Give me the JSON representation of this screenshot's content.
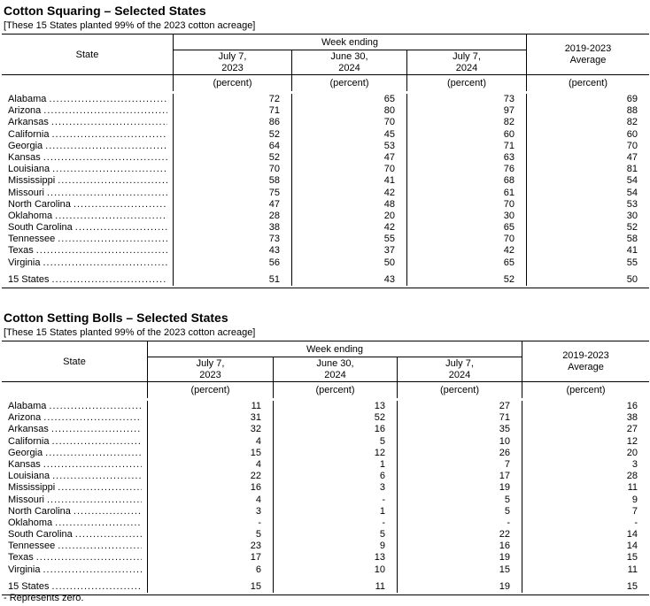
{
  "colors": {
    "text": "#000000",
    "border": "#000000",
    "background": "#ffffff"
  },
  "footnote": "- Represents zero.",
  "tables": [
    {
      "title": "Cotton Squaring – Selected States",
      "note": "[These 15 States planted 99% of the 2023 cotton acreage]",
      "state_header": "State",
      "week_ending_header": "Week ending",
      "columns": [
        {
          "line1": "July 7,",
          "line2": "2023"
        },
        {
          "line1": "June 30,",
          "line2": "2024"
        },
        {
          "line1": "July 7,",
          "line2": "2024"
        }
      ],
      "average_header": {
        "line1": "2019-2023",
        "line2": "Average"
      },
      "unit_label": "(percent)",
      "rows": [
        {
          "state": "Alabama",
          "values": [
            "72",
            "65",
            "73",
            "69"
          ]
        },
        {
          "state": "Arizona",
          "values": [
            "71",
            "80",
            "97",
            "88"
          ]
        },
        {
          "state": "Arkansas",
          "values": [
            "86",
            "70",
            "82",
            "82"
          ]
        },
        {
          "state": "California",
          "values": [
            "52",
            "45",
            "60",
            "60"
          ]
        },
        {
          "state": "Georgia",
          "values": [
            "64",
            "53",
            "71",
            "70"
          ]
        },
        {
          "state": "Kansas",
          "values": [
            "52",
            "47",
            "63",
            "47"
          ]
        },
        {
          "state": "Louisiana",
          "values": [
            "70",
            "70",
            "76",
            "81"
          ]
        },
        {
          "state": "Mississippi",
          "values": [
            "58",
            "41",
            "68",
            "54"
          ]
        },
        {
          "state": "Missouri",
          "values": [
            "75",
            "42",
            "61",
            "54"
          ]
        },
        {
          "state": "North Carolina",
          "values": [
            "47",
            "48",
            "70",
            "53"
          ]
        },
        {
          "state": "Oklahoma",
          "values": [
            "28",
            "20",
            "30",
            "30"
          ]
        },
        {
          "state": "South Carolina",
          "values": [
            "38",
            "42",
            "65",
            "52"
          ]
        },
        {
          "state": "Tennessee",
          "values": [
            "73",
            "55",
            "70",
            "58"
          ]
        },
        {
          "state": "Texas",
          "values": [
            "43",
            "37",
            "42",
            "41"
          ]
        },
        {
          "state": "Virginia",
          "values": [
            "56",
            "50",
            "65",
            "55"
          ]
        }
      ],
      "total_row": {
        "state": "15 States",
        "values": [
          "51",
          "43",
          "52",
          "50"
        ]
      }
    },
    {
      "title": "Cotton Setting Bolls – Selected States",
      "note": "[These 15 States planted 99% of the 2023 cotton acreage]",
      "state_header": "State",
      "week_ending_header": "Week ending",
      "columns": [
        {
          "line1": "July 7,",
          "line2": "2023"
        },
        {
          "line1": "June 30,",
          "line2": "2024"
        },
        {
          "line1": "July 7,",
          "line2": "2024"
        }
      ],
      "average_header": {
        "line1": "2019-2023",
        "line2": "Average"
      },
      "unit_label": "(percent)",
      "rows": [
        {
          "state": "Alabama",
          "values": [
            "11",
            "13",
            "27",
            "16"
          ]
        },
        {
          "state": "Arizona",
          "values": [
            "31",
            "52",
            "71",
            "38"
          ]
        },
        {
          "state": "Arkansas",
          "values": [
            "32",
            "16",
            "35",
            "27"
          ]
        },
        {
          "state": "California",
          "values": [
            "4",
            "5",
            "10",
            "12"
          ]
        },
        {
          "state": "Georgia",
          "values": [
            "15",
            "12",
            "26",
            "20"
          ]
        },
        {
          "state": "Kansas",
          "values": [
            "4",
            "1",
            "7",
            "3"
          ]
        },
        {
          "state": "Louisiana",
          "values": [
            "22",
            "6",
            "17",
            "28"
          ]
        },
        {
          "state": "Mississippi",
          "values": [
            "16",
            "3",
            "19",
            "11"
          ]
        },
        {
          "state": "Missouri",
          "values": [
            "4",
            "-",
            "5",
            "9"
          ]
        },
        {
          "state": "North Carolina",
          "values": [
            "3",
            "1",
            "5",
            "7"
          ]
        },
        {
          "state": "Oklahoma",
          "values": [
            "-",
            "-",
            "-",
            "-"
          ]
        },
        {
          "state": "South Carolina",
          "values": [
            "5",
            "5",
            "22",
            "14"
          ]
        },
        {
          "state": "Tennessee",
          "values": [
            "23",
            "9",
            "16",
            "14"
          ]
        },
        {
          "state": "Texas",
          "values": [
            "17",
            "13",
            "19",
            "15"
          ]
        },
        {
          "state": "Virginia",
          "values": [
            "6",
            "10",
            "15",
            "11"
          ]
        }
      ],
      "total_row": {
        "state": "15 States",
        "values": [
          "15",
          "11",
          "19",
          "15"
        ]
      }
    }
  ]
}
